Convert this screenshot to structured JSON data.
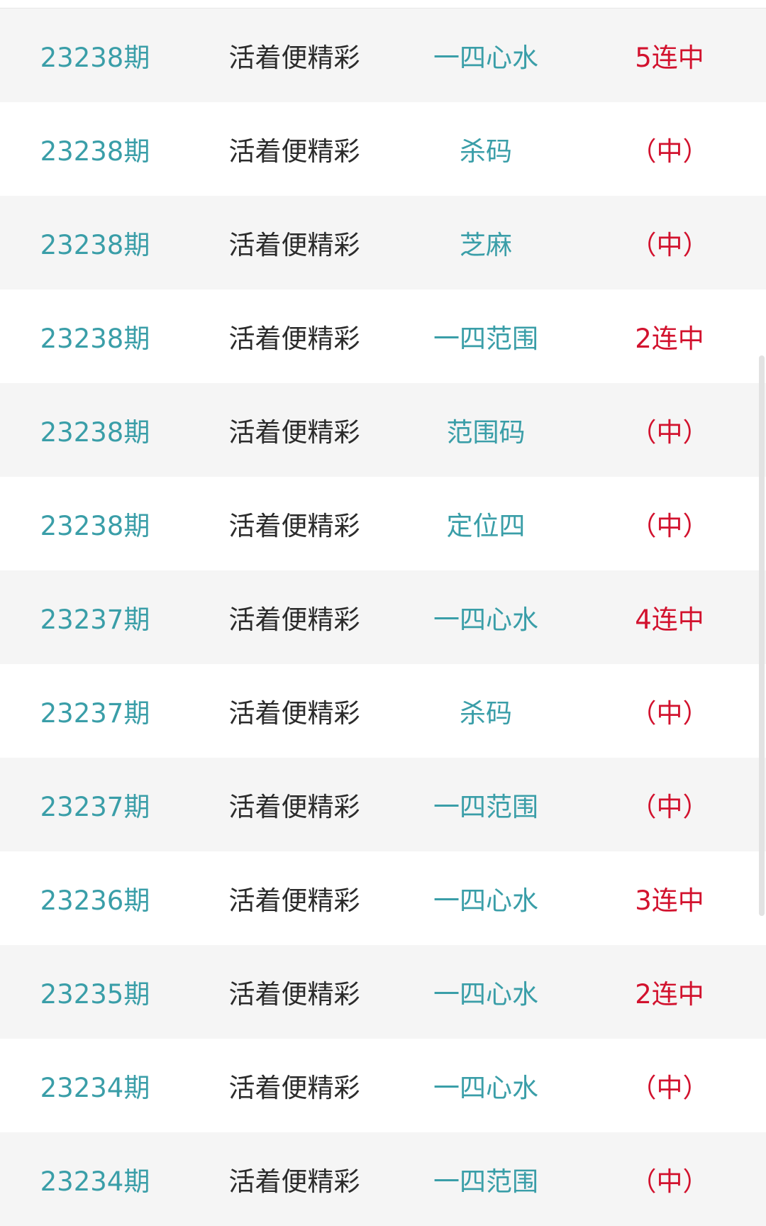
{
  "colors": {
    "issue": "#3a9ea8",
    "result": "#d2122e",
    "name": "#2b2b2b",
    "row_alt": "#f5f5f5"
  },
  "rows": [
    {
      "issue": "23238期",
      "name": "活着便精彩",
      "type": "一四心水",
      "result": "5连中"
    },
    {
      "issue": "23238期",
      "name": "活着便精彩",
      "type": "杀码",
      "result": "（中）"
    },
    {
      "issue": "23238期",
      "name": "活着便精彩",
      "type": "芝麻",
      "result": "（中）"
    },
    {
      "issue": "23238期",
      "name": "活着便精彩",
      "type": "一四范围",
      "result": "2连中"
    },
    {
      "issue": "23238期",
      "name": "活着便精彩",
      "type": "范围码",
      "result": "（中）"
    },
    {
      "issue": "23238期",
      "name": "活着便精彩",
      "type": "定位四",
      "result": "（中）"
    },
    {
      "issue": "23237期",
      "name": "活着便精彩",
      "type": "一四心水",
      "result": "4连中"
    },
    {
      "issue": "23237期",
      "name": "活着便精彩",
      "type": "杀码",
      "result": "（中）"
    },
    {
      "issue": "23237期",
      "name": "活着便精彩",
      "type": "一四范围",
      "result": "（中）"
    },
    {
      "issue": "23236期",
      "name": "活着便精彩",
      "type": "一四心水",
      "result": "3连中"
    },
    {
      "issue": "23235期",
      "name": "活着便精彩",
      "type": "一四心水",
      "result": "2连中"
    },
    {
      "issue": "23234期",
      "name": "活着便精彩",
      "type": "一四心水",
      "result": "（中）"
    },
    {
      "issue": "23234期",
      "name": "活着便精彩",
      "type": "一四范围",
      "result": "（中）"
    }
  ]
}
